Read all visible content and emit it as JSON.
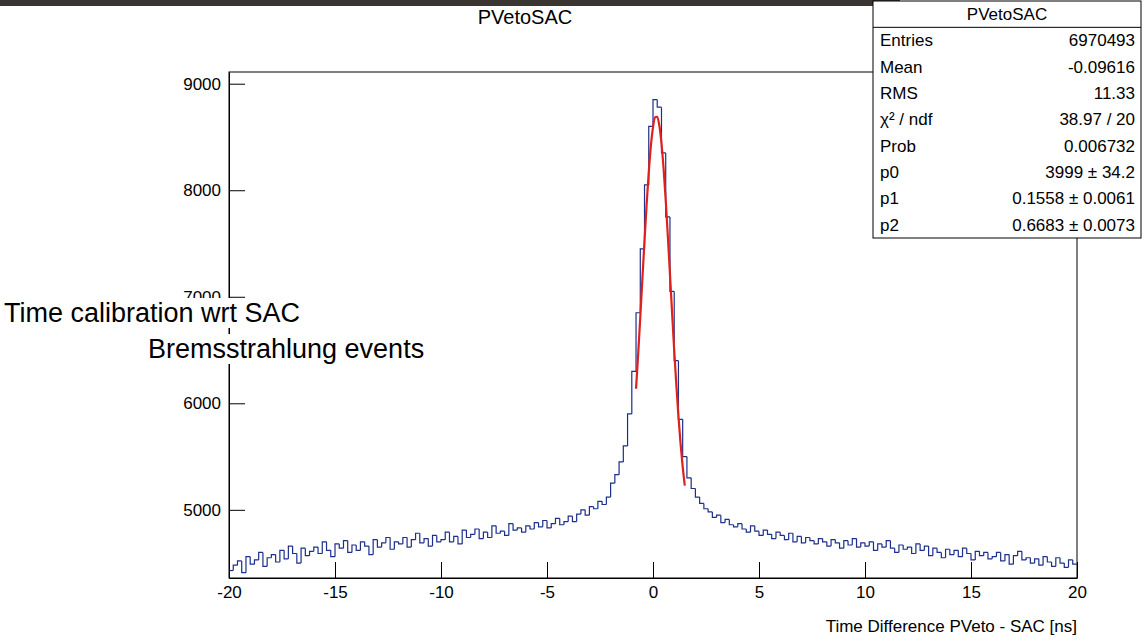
{
  "chart_data": {
    "type": "histogram",
    "title": "PVetoSAC",
    "x_label": "Time Difference PVeto - SAC [ns]",
    "color": "#1c2f8a",
    "xlim": [
      -20,
      20
    ],
    "xticks": [
      -20,
      -15,
      -10,
      -5,
      0,
      5,
      10,
      15,
      20
    ],
    "ylim": [
      4360,
      9110
    ],
    "yticks": [
      5000,
      6000,
      7000,
      8000,
      9000
    ],
    "bins": [
      -20,
      -19.8,
      -19.6,
      -19.4,
      -19.2,
      -19,
      -18.8,
      -18.6,
      -18.4,
      -18.2,
      -18,
      -17.8,
      -17.6,
      -17.4,
      -17.2,
      -17,
      -16.8,
      -16.6,
      -16.4,
      -16.2,
      -16,
      -15.8,
      -15.6,
      -15.4,
      -15.2,
      -15,
      -14.8,
      -14.6,
      -14.4,
      -14.2,
      -14,
      -13.8,
      -13.6,
      -13.4,
      -13.2,
      -13,
      -12.8,
      -12.6,
      -12.4,
      -12.2,
      -12,
      -11.8,
      -11.6,
      -11.4,
      -11.2,
      -11,
      -10.8,
      -10.6,
      -10.4,
      -10.2,
      -10,
      -9.8,
      -9.6,
      -9.4,
      -9.2,
      -9,
      -8.8,
      -8.6,
      -8.4,
      -8.2,
      -8,
      -7.8,
      -7.6,
      -7.4,
      -7.2,
      -7,
      -6.8,
      -6.6,
      -6.4,
      -6.2,
      -6,
      -5.8,
      -5.6,
      -5.4,
      -5.2,
      -5,
      -4.8,
      -4.6,
      -4.4,
      -4.2,
      -4,
      -3.8,
      -3.6,
      -3.4,
      -3.2,
      -3,
      -2.8,
      -2.6,
      -2.4,
      -2.2,
      -2,
      -1.8,
      -1.6,
      -1.4,
      -1.2,
      -1,
      -0.8,
      -0.6,
      -0.4,
      -0.2,
      0,
      0.2,
      0.4,
      0.6,
      0.8,
      1,
      1.2,
      1.4,
      1.6,
      1.8,
      2,
      2.2,
      2.4,
      2.6,
      2.8,
      3,
      3.2,
      3.4,
      3.6,
      3.8,
      4,
      4.2,
      4.4,
      4.6,
      4.8,
      5,
      5.2,
      5.4,
      5.6,
      5.8,
      6,
      6.2,
      6.4,
      6.6,
      6.8,
      7,
      7.2,
      7.4,
      7.6,
      7.8,
      8,
      8.2,
      8.4,
      8.6,
      8.8,
      9,
      9.2,
      9.4,
      9.6,
      9.8,
      10,
      10.2,
      10.4,
      10.6,
      10.8,
      11,
      11.2,
      11.4,
      11.6,
      11.8,
      12,
      12.2,
      12.4,
      12.6,
      12.8,
      13,
      13.2,
      13.4,
      13.6,
      13.8,
      14,
      14.2,
      14.4,
      14.6,
      14.8,
      15,
      15.2,
      15.4,
      15.6,
      15.8,
      16,
      16.2,
      16.4,
      16.6,
      16.8,
      17,
      17.2,
      17.4,
      17.6,
      17.8,
      18,
      18.2,
      18.4,
      18.6,
      18.8,
      19,
      19.2,
      19.4,
      19.6,
      19.8,
      20
    ],
    "values": [
      4430,
      4480,
      4520,
      4410,
      4560,
      4490,
      4530,
      4600,
      4470,
      4550,
      4580,
      4510,
      4620,
      4540,
      4660,
      4590,
      4500,
      4640,
      4570,
      4610,
      4650,
      4590,
      4700,
      4620,
      4560,
      4680,
      4640,
      4710,
      4600,
      4670,
      4620,
      4700,
      4660,
      4580,
      4720,
      4650,
      4690,
      4740,
      4630,
      4700,
      4680,
      4740,
      4650,
      4720,
      4780,
      4690,
      4730,
      4660,
      4760,
      4700,
      4720,
      4790,
      4700,
      4750,
      4680,
      4810,
      4740,
      4770,
      4820,
      4730,
      4790,
      4740,
      4850,
      4780,
      4800,
      4760,
      4870,
      4810,
      4830,
      4790,
      4850,
      4820,
      4880,
      4840,
      4900,
      4830,
      4870,
      4920,
      4860,
      4890,
      4940,
      4890,
      4960,
      5000,
      4950,
      5030,
      5010,
      5080,
      5050,
      5120,
      5250,
      5330,
      5450,
      5600,
      5900,
      6300,
      6850,
      7450,
      8050,
      8600,
      8850,
      8780,
      8350,
      7750,
      7050,
      6400,
      5850,
      5500,
      5300,
      5200,
      5120,
      5060,
      5010,
      4980,
      4930,
      4950,
      4880,
      4910,
      4860,
      4840,
      4870,
      4820,
      4790,
      4850,
      4800,
      4760,
      4810,
      4770,
      4730,
      4790,
      4760,
      4720,
      4780,
      4700,
      4750,
      4690,
      4740,
      4710,
      4680,
      4730,
      4700,
      4660,
      4720,
      4690,
      4640,
      4710,
      4670,
      4730,
      4650,
      4690,
      4660,
      4700,
      4620,
      4680,
      4650,
      4710,
      4640,
      4600,
      4670,
      4630,
      4650,
      4590,
      4680,
      4620,
      4660,
      4570,
      4640,
      4600,
      4550,
      4630,
      4580,
      4620,
      4560,
      4640,
      4590,
      4530,
      4610,
      4570,
      4600,
      4540,
      4560,
      4600,
      4520,
      4580,
      4490,
      4570,
      4610,
      4530,
      4550,
      4500,
      4540,
      4480,
      4560,
      4510,
      4470,
      4550,
      4500,
      4460,
      4530,
      4490
    ],
    "fit": {
      "type": "line",
      "color": "#e0201a",
      "x": [
        -0.8,
        -0.7,
        -0.6,
        -0.5,
        -0.4,
        -0.3,
        -0.2,
        -0.1,
        0,
        0.1,
        0.2,
        0.3,
        0.4,
        0.5,
        0.6,
        0.7,
        0.8,
        0.9,
        1,
        1.1,
        1.2,
        1.3,
        1.4,
        1.5
      ],
      "values": [
        6137,
        6460,
        6808,
        7170,
        7529,
        7868,
        8170,
        8416,
        8591,
        8685,
        8690,
        8606,
        8441,
        8202,
        7906,
        7571,
        7213,
        6850,
        6500,
        6174,
        5880,
        5622,
        5406,
        5228
      ]
    },
    "stats": {
      "title": "PVetoSAC",
      "rows": [
        [
          "Entries",
          "6970493"
        ],
        [
          "Mean",
          "-0.09616"
        ],
        [
          "RMS",
          "11.33"
        ],
        [
          "χ² / ndf",
          "38.97 / 20"
        ],
        [
          "Prob",
          "0.006732"
        ],
        [
          "p0",
          "3999 ± 34.2"
        ],
        [
          "p1",
          "0.1558 ± 0.0061"
        ],
        [
          "p2",
          "0.6683 ± 0.0073"
        ]
      ]
    },
    "annotations": [
      "Time calibration wrt SAC",
      "Bremsstrahlung events"
    ]
  }
}
